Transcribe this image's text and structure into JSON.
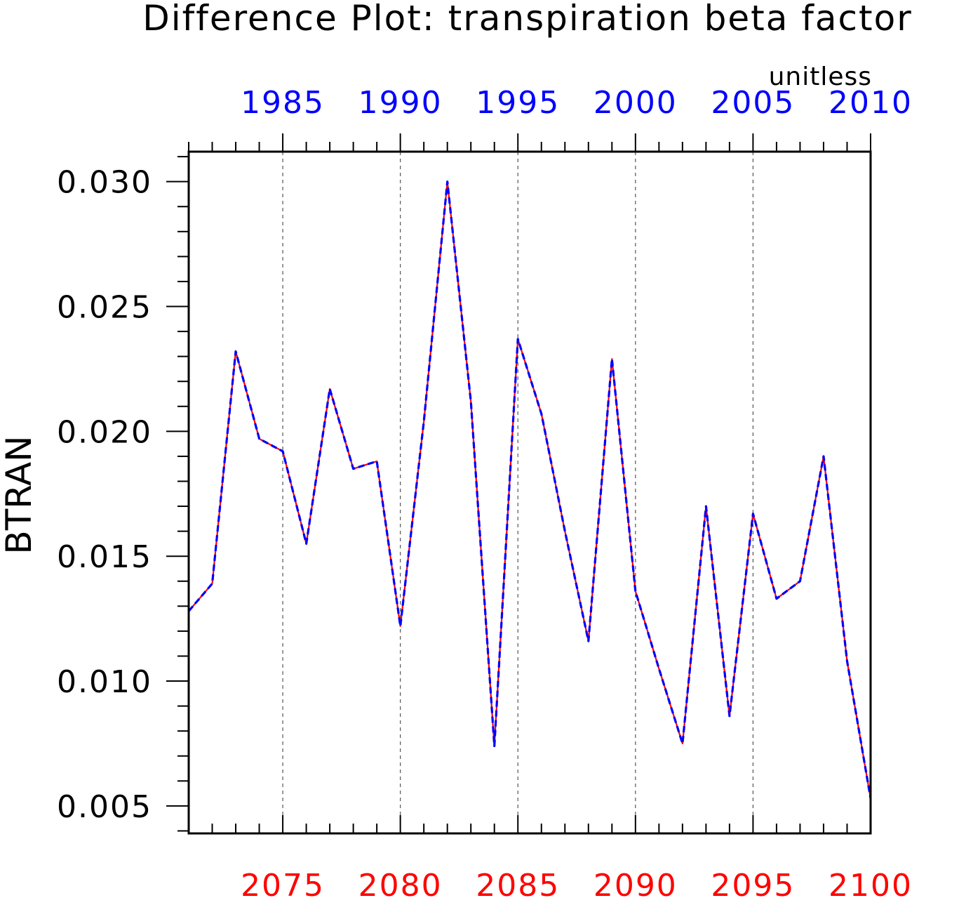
{
  "chart_data": {
    "type": "line",
    "title": "Difference Plot: transpiration beta factor",
    "units": "unitless",
    "ylabel": "BTRAN",
    "xlabel_bottom": "",
    "xlabel_top": "",
    "ylim": [
      0.0039,
      0.0312
    ],
    "yticks": [
      "0.005",
      "0.010",
      "0.015",
      "0.020",
      "0.025",
      "0.030"
    ],
    "bottom_axis": {
      "range": [
        2071,
        2100
      ],
      "ticks": [
        "2075",
        "2080",
        "2085",
        "2090",
        "2095",
        "2100"
      ],
      "color": "#ff0000"
    },
    "top_axis": {
      "range": [
        1981,
        2010
      ],
      "ticks": [
        "1985",
        "1990",
        "1995",
        "2000",
        "2005",
        "2010"
      ],
      "color": "#0000ff"
    },
    "grid": "vertical dashed at major ticks",
    "x": [
      2071,
      2072,
      2073,
      2074,
      2075,
      2076,
      2077,
      2078,
      2079,
      2080,
      2081,
      2082,
      2083,
      2084,
      2085,
      2086,
      2087,
      2088,
      2089,
      2090,
      2091,
      2092,
      2093,
      2094,
      2095,
      2096,
      2097,
      2098,
      2099,
      2100
    ],
    "series": [
      {
        "color": "#ff0000",
        "style": "solid",
        "values": [
          0.0128,
          0.0139,
          0.0232,
          0.0197,
          0.0192,
          0.0155,
          0.0217,
          0.0185,
          0.0188,
          0.0122,
          0.0204,
          0.03,
          0.0212,
          0.0074,
          0.0237,
          0.0207,
          0.016,
          0.0116,
          0.0229,
          0.0136,
          0.0105,
          0.0075,
          0.017,
          0.0086,
          0.0167,
          0.0133,
          0.014,
          0.019,
          0.0108,
          0.0053
        ]
      },
      {
        "color": "#0000ff",
        "style": "dashed",
        "values": [
          0.0128,
          0.0139,
          0.0232,
          0.0197,
          0.0192,
          0.0155,
          0.0217,
          0.0185,
          0.0188,
          0.0122,
          0.0204,
          0.03,
          0.0212,
          0.0074,
          0.0237,
          0.0207,
          0.016,
          0.0116,
          0.0229,
          0.0136,
          0.0105,
          0.0075,
          0.017,
          0.0086,
          0.0167,
          0.0133,
          0.014,
          0.019,
          0.0108,
          0.0053
        ]
      }
    ]
  }
}
